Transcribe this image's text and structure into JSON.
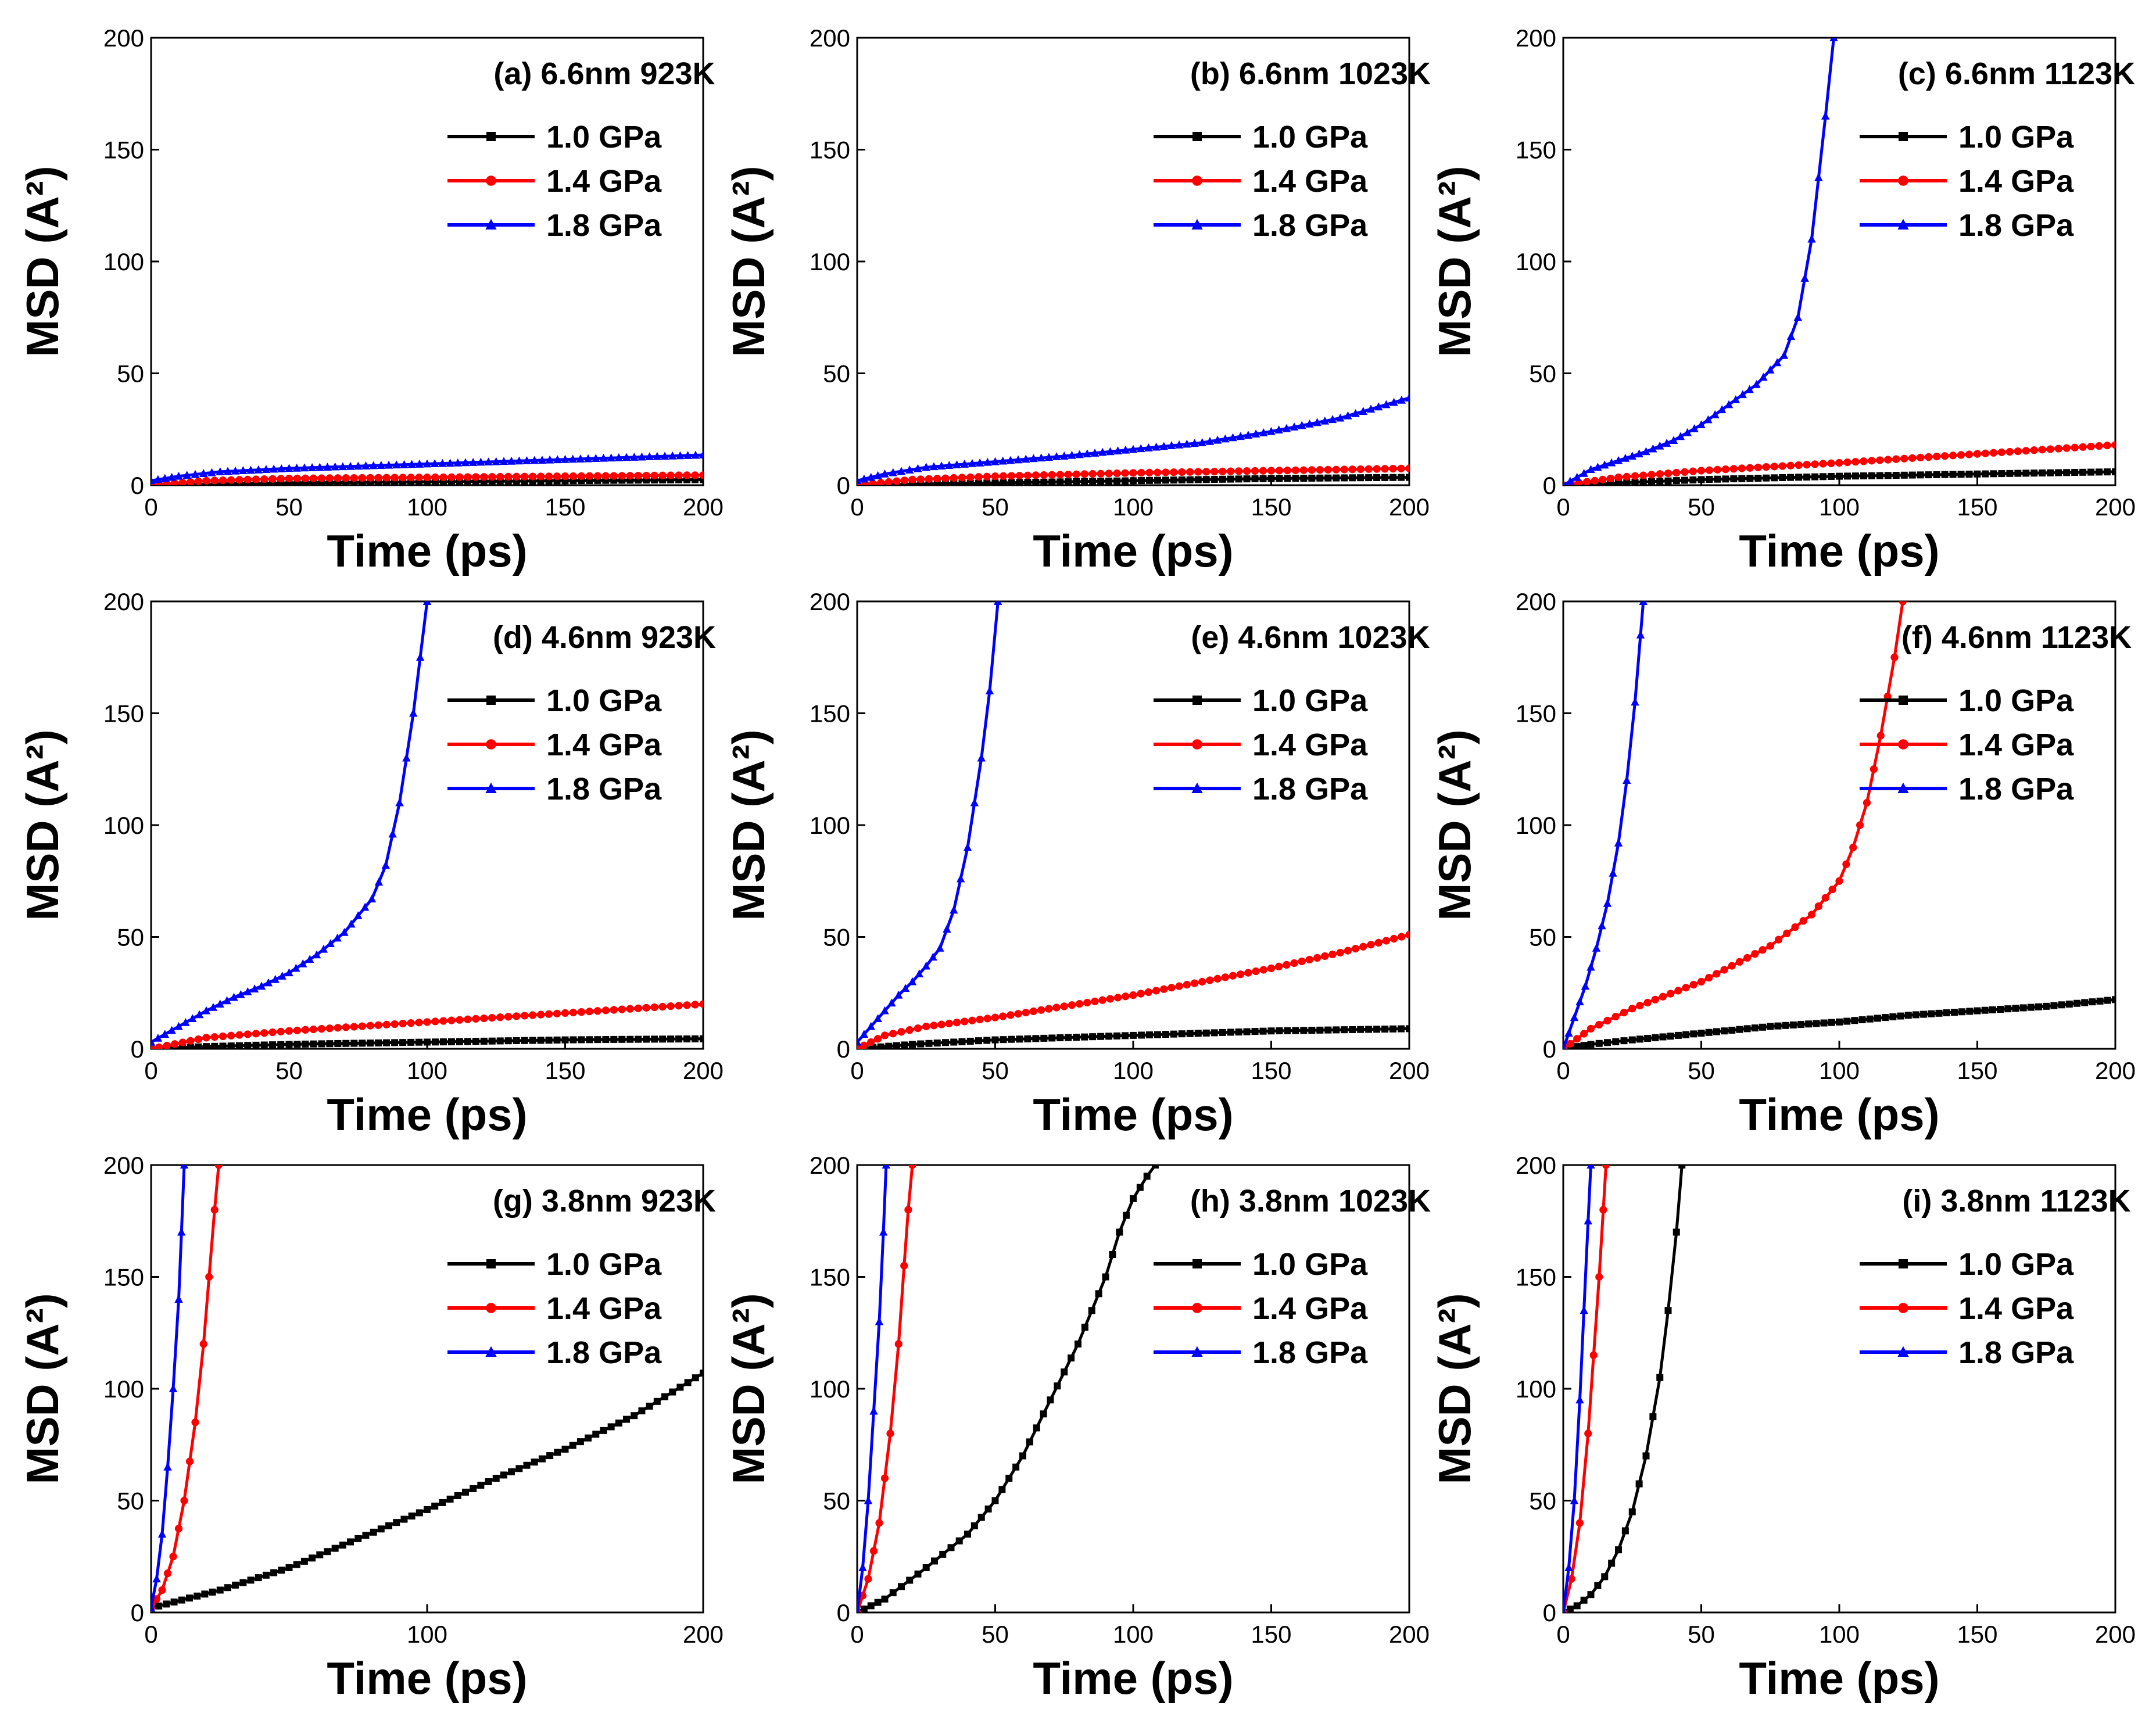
{
  "colors": {
    "1.0 GPa": "#000000",
    "1.4 GPa": "#ff0000",
    "1.8 GPa": "#0000ff"
  },
  "chart_data": [
    {
      "type": "line",
      "title": "(a) 6.6nm  923K",
      "xlabel": "Time (ps)",
      "ylabel": "MSD (A²)",
      "xlim": [
        0,
        200
      ],
      "ylim": [
        0,
        200
      ],
      "xticks": [
        0,
        50,
        100,
        150,
        200
      ],
      "yticks": [
        0,
        50,
        100,
        150,
        200
      ],
      "legend": [
        "1.0 GPa",
        "1.4 GPa",
        "1.8 GPa"
      ],
      "series": [
        {
          "name": "1.0 GPa",
          "color": "#000000",
          "marker": "square",
          "x": [
            0,
            20,
            50,
            100,
            150,
            200
          ],
          "y": [
            0,
            0.5,
            1,
            1.5,
            2,
            2.5
          ]
        },
        {
          "name": "1.4 GPa",
          "color": "#ff0000",
          "marker": "circle",
          "x": [
            0,
            20,
            50,
            100,
            150,
            200
          ],
          "y": [
            0,
            2,
            3,
            3.5,
            4,
            4.5
          ]
        },
        {
          "name": "1.8 GPa",
          "color": "#0000ff",
          "marker": "triangle",
          "x": [
            0,
            10,
            25,
            50,
            75,
            100,
            125,
            150,
            175,
            200
          ],
          "y": [
            2,
            4,
            6,
            7.5,
            8.5,
            9.5,
            10.5,
            11.5,
            12.5,
            13.5
          ]
        }
      ]
    },
    {
      "type": "line",
      "title": "(b) 6.6nm  1023K",
      "xlabel": "Time (ps)",
      "ylabel": "MSD (A²)",
      "xlim": [
        0,
        200
      ],
      "ylim": [
        0,
        200
      ],
      "xticks": [
        0,
        50,
        100,
        150,
        200
      ],
      "yticks": [
        0,
        50,
        100,
        150,
        200
      ],
      "legend": [
        "1.0 GPa",
        "1.4 GPa",
        "1.8 GPa"
      ],
      "series": [
        {
          "name": "1.0 GPa",
          "color": "#000000",
          "marker": "square",
          "x": [
            0,
            20,
            50,
            100,
            150,
            200
          ],
          "y": [
            0,
            0.5,
            1,
            2,
            3,
            3.5
          ]
        },
        {
          "name": "1.4 GPa",
          "color": "#ff0000",
          "marker": "circle",
          "x": [
            0,
            20,
            50,
            100,
            150,
            200
          ],
          "y": [
            0,
            2.5,
            4,
            5.5,
            6.5,
            7.5
          ]
        },
        {
          "name": "1.8 GPa",
          "color": "#0000ff",
          "marker": "triangle",
          "x": [
            0,
            10,
            25,
            50,
            75,
            100,
            125,
            150,
            175,
            200
          ],
          "y": [
            2,
            5,
            8,
            10.5,
            13,
            16,
            19,
            24,
            30,
            39
          ]
        }
      ]
    },
    {
      "type": "line",
      "title": "(c) 6.6nm  1123K",
      "xlabel": "Time (ps)",
      "ylabel": "MSD (A²)",
      "xlim": [
        0,
        200
      ],
      "ylim": [
        0,
        200
      ],
      "xticks": [
        0,
        50,
        100,
        150,
        200
      ],
      "yticks": [
        0,
        50,
        100,
        150,
        200
      ],
      "legend": [
        "1.0 GPa",
        "1.4 GPa",
        "1.8 GPa"
      ],
      "series": [
        {
          "name": "1.0 GPa",
          "color": "#000000",
          "marker": "square",
          "x": [
            0,
            20,
            50,
            100,
            150,
            200
          ],
          "y": [
            0,
            1,
            2.5,
            4,
            5,
            6
          ]
        },
        {
          "name": "1.4 GPa",
          "color": "#ff0000",
          "marker": "circle",
          "x": [
            0,
            20,
            50,
            100,
            150,
            200
          ],
          "y": [
            0,
            3.5,
            6.5,
            10,
            14,
            18
          ]
        },
        {
          "name": "1.8 GPa",
          "color": "#0000ff",
          "marker": "triangle",
          "x": [
            0,
            10,
            20,
            30,
            40,
            50,
            60,
            70,
            80,
            85,
            90,
            95,
            98
          ],
          "y": [
            0,
            7,
            11,
            15,
            20,
            27,
            36,
            45,
            58,
            75,
            110,
            165,
            200
          ]
        }
      ]
    },
    {
      "type": "line",
      "title": "(d) 4.6nm  923K",
      "xlabel": "Time (ps)",
      "ylabel": "MSD (A²)",
      "xlim": [
        0,
        200
      ],
      "ylim": [
        0,
        200
      ],
      "xticks": [
        0,
        50,
        100,
        150,
        200
      ],
      "yticks": [
        0,
        50,
        100,
        150,
        200
      ],
      "legend": [
        "1.0 GPa",
        "1.4 GPa",
        "1.8 GPa"
      ],
      "series": [
        {
          "name": "1.0 GPa",
          "color": "#000000",
          "marker": "square",
          "x": [
            0,
            20,
            50,
            100,
            150,
            200
          ],
          "y": [
            0,
            1,
            2,
            3,
            4,
            4.5
          ]
        },
        {
          "name": "1.4 GPa",
          "color": "#ff0000",
          "marker": "circle",
          "x": [
            0,
            20,
            50,
            100,
            150,
            200
          ],
          "y": [
            0,
            5,
            8,
            12,
            16,
            20
          ]
        },
        {
          "name": "1.8 GPa",
          "color": "#0000ff",
          "marker": "triangle",
          "x": [
            0,
            10,
            20,
            30,
            40,
            50,
            60,
            70,
            80,
            85,
            90,
            95,
            100
          ],
          "y": [
            3,
            10,
            17,
            23,
            28,
            34,
            42,
            52,
            67,
            82,
            110,
            150,
            200
          ]
        }
      ]
    },
    {
      "type": "line",
      "title": "(e) 4.6nm  1023K",
      "xlabel": "Time (ps)",
      "ylabel": "MSD (A²)",
      "xlim": [
        0,
        200
      ],
      "ylim": [
        0,
        200
      ],
      "xticks": [
        0,
        50,
        100,
        150,
        200
      ],
      "yticks": [
        0,
        50,
        100,
        150,
        200
      ],
      "legend": [
        "1.0 GPa",
        "1.4 GPa",
        "1.8 GPa"
      ],
      "series": [
        {
          "name": "1.0 GPa",
          "color": "#000000",
          "marker": "square",
          "x": [
            0,
            20,
            50,
            100,
            150,
            200
          ],
          "y": [
            0,
            2,
            4,
            6,
            8,
            9
          ]
        },
        {
          "name": "1.4 GPa",
          "color": "#ff0000",
          "marker": "circle",
          "x": [
            0,
            10,
            25,
            50,
            75,
            100,
            125,
            150,
            175,
            200
          ],
          "y": [
            0,
            6,
            10,
            14,
            19,
            24,
            30,
            36,
            43,
            51
          ]
        },
        {
          "name": "1.8 GPa",
          "color": "#0000ff",
          "marker": "triangle",
          "x": [
            0,
            5,
            10,
            15,
            20,
            25,
            30,
            35,
            40,
            45,
            48,
            51
          ],
          "y": [
            3,
            10,
            17,
            24,
            30,
            37,
            45,
            62,
            90,
            130,
            160,
            200
          ]
        }
      ]
    },
    {
      "type": "line",
      "title": "(f)  4.6nm  1123K",
      "xlabel": "Time (ps)",
      "ylabel": "MSD (A²)",
      "xlim": [
        0,
        200
      ],
      "ylim": [
        0,
        200
      ],
      "xticks": [
        0,
        50,
        100,
        150,
        200
      ],
      "yticks": [
        0,
        50,
        100,
        150,
        200
      ],
      "legend": [
        "1.0 GPa",
        "1.4 GPa",
        "1.8 GPa"
      ],
      "series": [
        {
          "name": "1.0 GPa",
          "color": "#000000",
          "marker": "square",
          "x": [
            0,
            10,
            25,
            50,
            75,
            100,
            125,
            150,
            175,
            200
          ],
          "y": [
            0,
            2,
            4,
            7,
            10,
            12,
            15,
            17,
            19,
            22
          ]
        },
        {
          "name": "1.4 GPa",
          "color": "#ff0000",
          "marker": "circle",
          "x": [
            0,
            10,
            25,
            50,
            75,
            90,
            100,
            105,
            110,
            115,
            120,
            123
          ],
          "y": [
            0,
            9,
            18,
            30,
            46,
            60,
            75,
            90,
            110,
            140,
            175,
            200
          ]
        },
        {
          "name": "1.8 GPa",
          "color": "#0000ff",
          "marker": "triangle",
          "x": [
            0,
            4,
            8,
            12,
            16,
            20,
            23,
            26,
            28,
            29
          ],
          "y": [
            0,
            14,
            28,
            45,
            65,
            92,
            120,
            155,
            185,
            200
          ]
        }
      ]
    },
    {
      "type": "line",
      "title": "(g) 3.8nm  923K",
      "xlabel": "Time (ps)",
      "ylabel": "MSD (A²)",
      "xlim": [
        0,
        200
      ],
      "ylim": [
        0,
        200
      ],
      "xticks": [
        0,
        100,
        200
      ],
      "yticks": [
        0,
        50,
        100,
        150,
        200
      ],
      "legend": [
        "1.0 GPa",
        "1.4 GPa",
        "1.8 GPa"
      ],
      "series": [
        {
          "name": "1.0 GPa",
          "color": "#000000",
          "marker": "square",
          "x": [
            0,
            25,
            50,
            75,
            100,
            125,
            150,
            175,
            200
          ],
          "y": [
            2,
            10,
            20,
            33,
            46,
            60,
            73,
            88,
            107
          ]
        },
        {
          "name": "1.4 GPa",
          "color": "#ff0000",
          "marker": "circle",
          "x": [
            0,
            4,
            8,
            12,
            16,
            19,
            21,
            23,
            24.5
          ],
          "y": [
            2,
            10,
            25,
            50,
            85,
            120,
            150,
            180,
            200
          ]
        },
        {
          "name": "1.8 GPa",
          "color": "#0000ff",
          "marker": "triangle",
          "x": [
            0,
            2,
            4,
            6,
            8,
            10,
            11,
            12
          ],
          "y": [
            2,
            15,
            35,
            65,
            100,
            140,
            170,
            200
          ]
        }
      ]
    },
    {
      "type": "line",
      "title": "(h) 3.8nm 1023K",
      "xlabel": "Time (ps)",
      "ylabel": "MSD (A²)",
      "xlim": [
        0,
        200
      ],
      "ylim": [
        0,
        200
      ],
      "xticks": [
        0,
        50,
        100,
        150,
        200
      ],
      "yticks": [
        0,
        50,
        100,
        150,
        200
      ],
      "legend": [
        "1.0 GPa",
        "1.4 GPa",
        "1.8 GPa"
      ],
      "series": [
        {
          "name": "1.0 GPa",
          "color": "#000000",
          "marker": "square",
          "x": [
            0,
            10,
            25,
            40,
            50,
            60,
            70,
            80,
            90,
            95,
            100,
            105,
            108
          ],
          "y": [
            0,
            6,
            20,
            35,
            50,
            70,
            95,
            120,
            150,
            170,
            185,
            195,
            200
          ]
        },
        {
          "name": "1.4 GPa",
          "color": "#ff0000",
          "marker": "circle",
          "x": [
            0,
            4,
            8,
            12,
            15,
            17,
            18.5,
            20
          ],
          "y": [
            0,
            15,
            40,
            80,
            120,
            155,
            180,
            200
          ]
        },
        {
          "name": "1.8 GPa",
          "color": "#0000ff",
          "marker": "triangle",
          "x": [
            0,
            2,
            4,
            6,
            8,
            9.5,
            10.5
          ],
          "y": [
            0,
            20,
            50,
            90,
            130,
            170,
            200
          ]
        }
      ]
    },
    {
      "type": "line",
      "title": "(i) 3.8nm  1123K",
      "xlabel": "Time (ps)",
      "ylabel": "MSD (A²)",
      "xlim": [
        0,
        200
      ],
      "ylim": [
        0,
        200
      ],
      "xticks": [
        0,
        50,
        100,
        150,
        200
      ],
      "yticks": [
        0,
        50,
        100,
        150,
        200
      ],
      "legend": [
        "1.0 GPa",
        "1.4 GPa",
        "1.8 GPa"
      ],
      "series": [
        {
          "name": "1.0 GPa",
          "color": "#000000",
          "marker": "square",
          "x": [
            0,
            5,
            10,
            15,
            20,
            25,
            30,
            35,
            38,
            41,
            43
          ],
          "y": [
            0,
            3,
            8,
            16,
            28,
            45,
            70,
            105,
            135,
            170,
            200
          ]
        },
        {
          "name": "1.4 GPa",
          "color": "#ff0000",
          "marker": "circle",
          "x": [
            0,
            3,
            6,
            9,
            11,
            13,
            14.5,
            15.5
          ],
          "y": [
            0,
            15,
            40,
            80,
            115,
            150,
            180,
            200
          ]
        },
        {
          "name": "1.8 GPa",
          "color": "#0000ff",
          "marker": "triangle",
          "x": [
            0,
            2,
            4,
            6,
            7.5,
            9,
            10
          ],
          "y": [
            0,
            20,
            50,
            95,
            135,
            175,
            200
          ]
        }
      ]
    }
  ]
}
